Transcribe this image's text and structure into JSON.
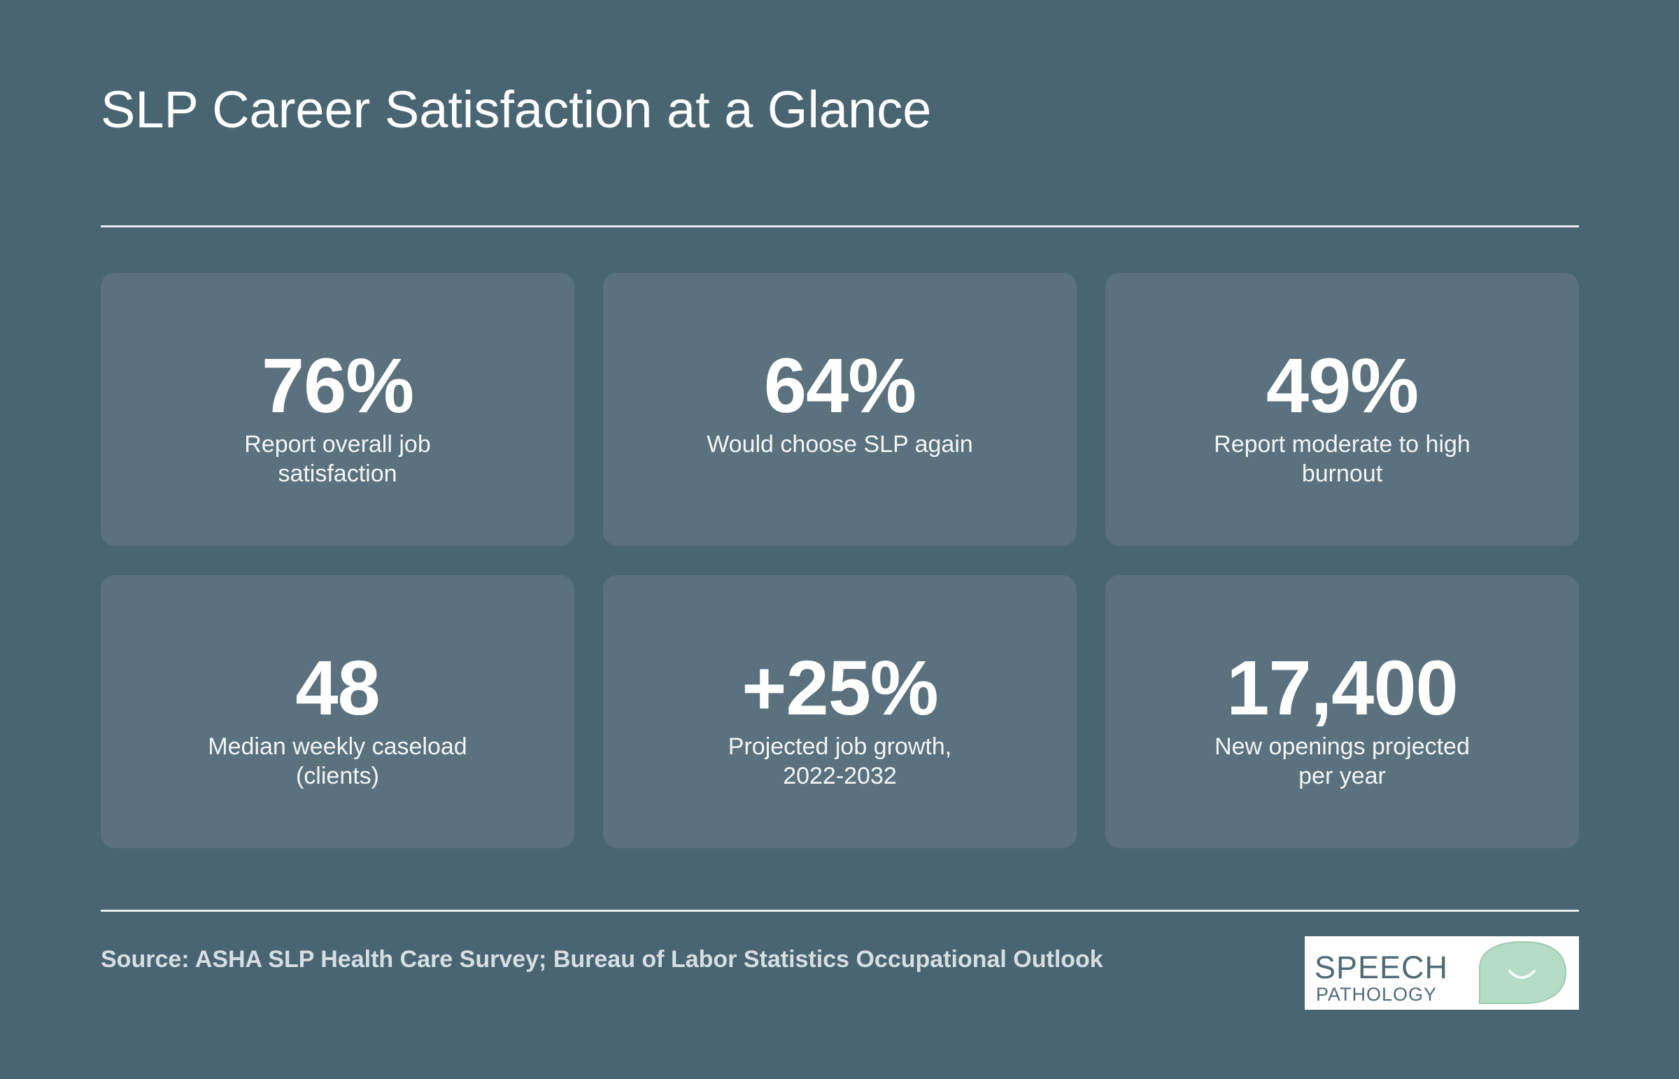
{
  "header": {
    "title": "SLP Career Satisfaction at a Glance"
  },
  "stats": [
    {
      "value": "76%",
      "label": "Report overall job satisfaction"
    },
    {
      "value": "64%",
      "label": "Would choose SLP again"
    },
    {
      "value": "49%",
      "label": "Report moderate to high burnout"
    },
    {
      "value": "48",
      "label": "Median weekly caseload (clients)"
    },
    {
      "value": "+25%",
      "label": "Projected job growth, 2022-2032"
    },
    {
      "value": "17,400",
      "label": "New openings projected per year"
    }
  ],
  "footer": {
    "source": "Source: ASHA SLP Health Care Survey; Bureau of Labor Statistics Occupational Outlook",
    "logo": {
      "line1": "SPEECH",
      "line2": "PATHOLOGY",
      "icon": "speech-bubble-smile-icon"
    }
  },
  "colors": {
    "background": "#4a6572",
    "card": "#5b727e",
    "text": "#ffffff",
    "source_text": "#d5dee3",
    "logo_text": "#4f6b76",
    "logo_bubble": "#b5dcc4"
  }
}
